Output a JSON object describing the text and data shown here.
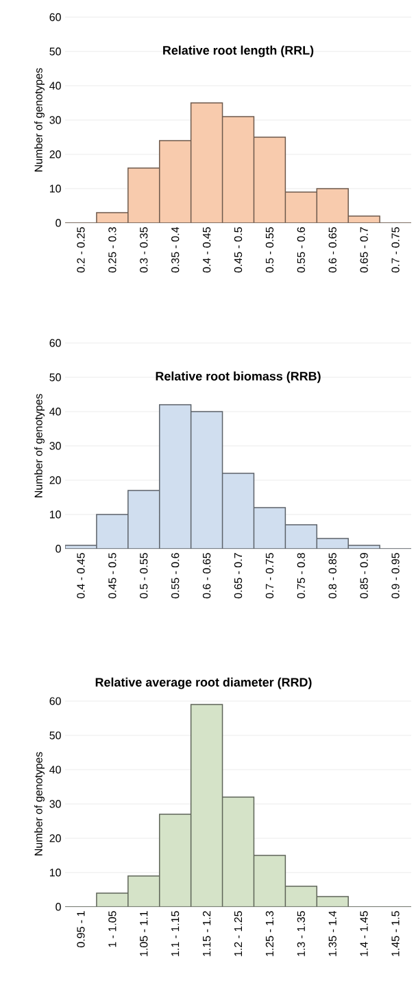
{
  "chart_data": [
    {
      "type": "bar",
      "title": "Relative root length (RRL)",
      "ylabel": "Number of genotypes",
      "categories": [
        "0.2 - 0.25",
        "0.25 - 0.3",
        "0.3 - 0.35",
        "0.35 - 0.4",
        "0.4 - 0.45",
        "0.45 - 0.5",
        "0.5 - 0.55",
        "0.55 - 0.6",
        "0.6 - 0.65",
        "0.65 - 0.7",
        "0.7 - 0.75"
      ],
      "values": [
        0,
        3,
        16,
        24,
        35,
        31,
        25,
        9,
        10,
        2,
        0
      ],
      "color": "#f8cbad",
      "ylim": [
        0,
        60
      ],
      "yticks": [
        0,
        10,
        20,
        30,
        40,
        50,
        60
      ],
      "grid": "y"
    },
    {
      "type": "bar",
      "title": "Relative root biomass (RRB)",
      "ylabel": "Number of genotypes",
      "categories": [
        "0.4 - 0.45",
        "0.45 - 0.5",
        "0.5 - 0.55",
        "0.55 - 0.6",
        "0.6 - 0.65",
        "0.65 - 0.7",
        "0.7 - 0.75",
        "0.75 - 0.8",
        "0.8 - 0.85",
        "0.85 - 0.9",
        "0.9 - 0.95"
      ],
      "values": [
        1,
        10,
        17,
        42,
        40,
        22,
        12,
        7,
        3,
        1,
        0
      ],
      "color": "#d0deef",
      "ylim": [
        0,
        60
      ],
      "yticks": [
        0,
        10,
        20,
        30,
        40,
        50,
        60
      ],
      "grid": "y"
    },
    {
      "type": "bar",
      "title": "Relative average root diameter (RRD)",
      "ylabel": "Number of genotypes",
      "categories": [
        "0.95 - 1",
        "1 - 1.05",
        "1.05 - 1.1",
        "1.1 - 1.15",
        "1.15 - 1.2",
        "1.2 - 1.25",
        "1.25 - 1.3",
        "1.3 - 1.35",
        "1.35 - 1.4",
        "1.4 - 1.45",
        "1.45 - 1.5"
      ],
      "values": [
        0,
        4,
        9,
        27,
        59,
        32,
        15,
        6,
        3,
        0,
        0
      ],
      "color": "#d5e3c8",
      "ylim": [
        0,
        60
      ],
      "yticks": [
        0,
        10,
        20,
        30,
        40,
        50,
        60
      ],
      "grid": "y"
    }
  ]
}
